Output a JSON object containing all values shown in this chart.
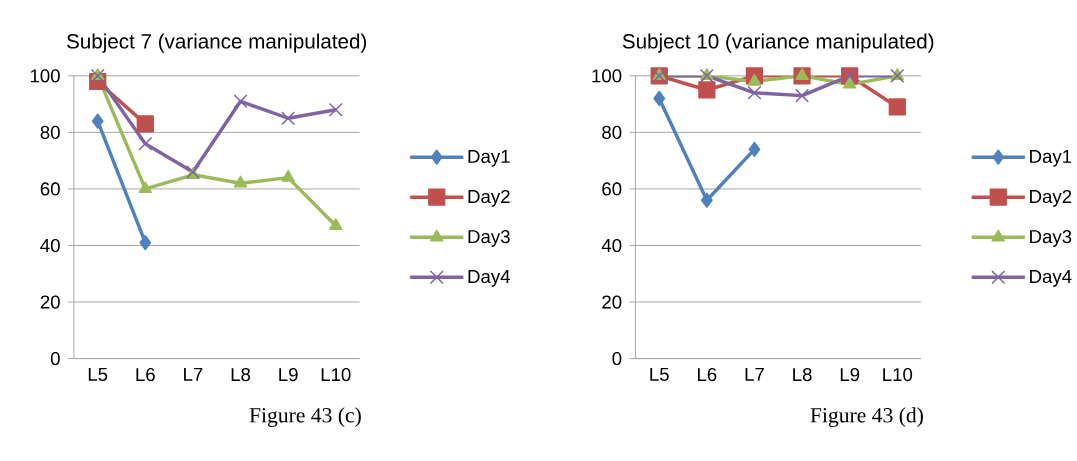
{
  "chart_data": [
    {
      "type": "line",
      "title": "Subject 7 (variance manipulated)",
      "categories": [
        "L5",
        "L6",
        "L7",
        "L8",
        "L9",
        "L10"
      ],
      "ylim": [
        0,
        100
      ],
      "yticks": [
        0,
        20,
        40,
        60,
        80,
        100
      ],
      "grid": "y",
      "legend": "right",
      "line_style": "solid",
      "series": [
        {
          "name": "Day1",
          "color": "#4f81bd",
          "marker": "diamond",
          "values": [
            84,
            41,
            null,
            null,
            null,
            null
          ]
        },
        {
          "name": "Day2",
          "color": "#c0504d",
          "marker": "square",
          "values": [
            98,
            83,
            null,
            null,
            null,
            null
          ]
        },
        {
          "name": "Day3",
          "color": "#9bbb59",
          "marker": "triangle",
          "values": [
            100,
            60,
            65,
            62,
            64,
            47
          ]
        },
        {
          "name": "Day4",
          "color": "#8064a2",
          "marker": "cross",
          "values": [
            100,
            76,
            66,
            91,
            85,
            88
          ]
        }
      ],
      "annotations": [
        "Figure 43 (c)"
      ]
    },
    {
      "type": "line",
      "title": "Subject 10 (variance manipulated)",
      "categories": [
        "L5",
        "L6",
        "L7",
        "L8",
        "L9",
        "L10"
      ],
      "ylim": [
        0,
        100
      ],
      "yticks": [
        0,
        20,
        40,
        60,
        80,
        100
      ],
      "grid": "y",
      "legend": "right",
      "line_style": "solid",
      "series": [
        {
          "name": "Day1",
          "color": "#4f81bd",
          "marker": "diamond",
          "values": [
            92,
            56,
            74,
            null,
            null,
            null
          ]
        },
        {
          "name": "Day2",
          "color": "#c0504d",
          "marker": "square",
          "values": [
            100,
            95,
            100,
            100,
            100,
            89
          ]
        },
        {
          "name": "Day3",
          "color": "#9bbb59",
          "marker": "triangle",
          "values": [
            100,
            100,
            98,
            100,
            97,
            100
          ]
        },
        {
          "name": "Day4",
          "color": "#8064a2",
          "marker": "cross",
          "values": [
            100,
            100,
            94,
            93,
            100,
            100
          ]
        }
      ],
      "annotations": [
        "Figure 43 (d)"
      ]
    }
  ]
}
